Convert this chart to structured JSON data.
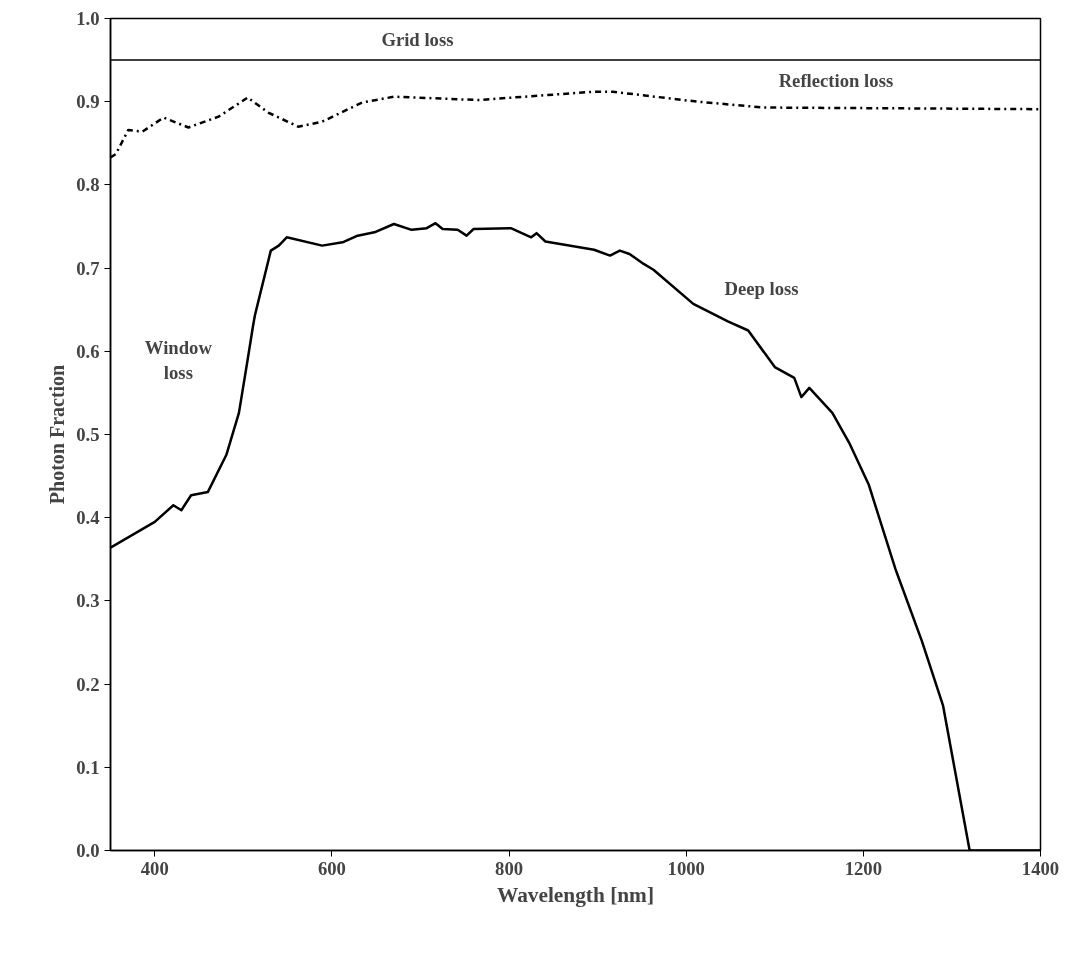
{
  "chart_data": {
    "type": "line",
    "xlabel": "Wavelength [nm]",
    "ylabel": "Photon Fraction",
    "xlim": [
      350,
      1400
    ],
    "ylim": [
      0,
      1
    ],
    "xticks": [
      400,
      600,
      800,
      1000,
      1200,
      1400
    ],
    "yticks": [
      {
        "value": 0,
        "label": "0.0"
      },
      0.1,
      0.2,
      0.3,
      0.4,
      0.5,
      0.6,
      0.7,
      0.8,
      0.9,
      {
        "value": 1,
        "label": "1.0"
      }
    ],
    "grid": false,
    "marker": "none",
    "series": [
      {
        "color": "#000000",
        "line_style": "dashdot",
        "x": [
          350,
          356,
          370,
          386,
          410,
          438,
          472,
          505,
          528,
          562,
          589,
          634,
          670,
          765,
          896,
          917,
          1013,
          1088,
          1400
        ],
        "values": [
          0.833,
          0.837,
          0.866,
          0.864,
          0.881,
          0.869,
          0.882,
          0.905,
          0.887,
          0.87,
          0.876,
          0.899,
          0.906,
          0.902,
          0.912,
          0.912,
          0.9,
          0.893,
          0.891
        ]
      },
      {
        "color": "#000000",
        "line_style": "solid",
        "x": [
          350,
          400,
          421,
          430,
          441,
          460,
          481,
          495,
          505,
          511,
          513,
          531,
          540,
          549,
          589,
          612,
          629,
          648,
          670,
          690,
          707,
          717,
          725,
          742,
          752,
          760,
          802,
          825,
          831,
          841,
          896,
          914,
          925,
          936,
          952,
          963,
          1008,
          1047,
          1070,
          1100,
          1122,
          1130,
          1139,
          1165,
          1184,
          1206,
          1236,
          1266,
          1290,
          1320,
          1400
        ],
        "values": [
          0.364,
          0.395,
          0.415,
          0.409,
          0.427,
          0.431,
          0.476,
          0.526,
          0.591,
          0.631,
          0.643,
          0.721,
          0.727,
          0.737,
          0.727,
          0.731,
          0.739,
          0.743,
          0.753,
          0.746,
          0.748,
          0.754,
          0.747,
          0.746,
          0.739,
          0.747,
          0.748,
          0.737,
          0.742,
          0.732,
          0.722,
          0.715,
          0.721,
          0.717,
          0.705,
          0.698,
          0.657,
          0.636,
          0.625,
          0.581,
          0.568,
          0.545,
          0.556,
          0.526,
          0.49,
          0.44,
          0.339,
          0.252,
          0.174,
          0,
          0
        ]
      }
    ],
    "ref_lines": [
      {
        "axis": "y",
        "value": 0.95,
        "color": "#000000",
        "line_style": "solid"
      }
    ],
    "annotations": [
      "Grid loss",
      "Reflection loss",
      "Deep loss",
      "Window\nloss"
    ]
  }
}
